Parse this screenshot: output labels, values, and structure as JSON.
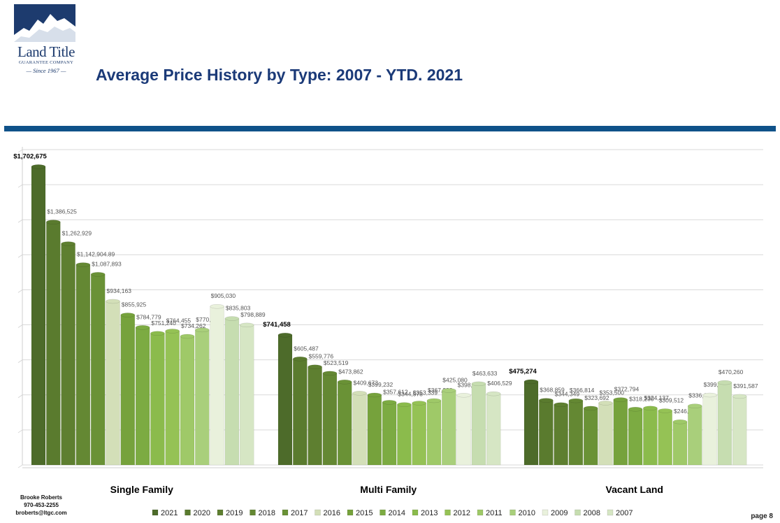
{
  "logo": {
    "name": "Land Title",
    "subtitle": "GUARANTEE COMPANY",
    "since": "— Since 1967 —"
  },
  "page_title": "Average Price History by Type: 2007 - YTD. 2021",
  "contact": {
    "name": "Brooke Roberts",
    "phone": "970-453-2255",
    "email": "broberts@ltgc.com"
  },
  "page_number": "page 8",
  "chart_data": {
    "type": "bar",
    "title": "",
    "xlabel": "",
    "ylabel": "",
    "ylim": [
      0,
      1800000
    ],
    "grid": true,
    "legend_position": "bottom",
    "categories": [
      "Single Family",
      "Multi Family",
      "Vacant Land"
    ],
    "series": [
      {
        "name": "2021",
        "color": "#4d6b2a",
        "values": [
          1702675,
          741458,
          475274
        ],
        "labels": [
          "$1,702,675",
          "$741,458",
          "$475,274"
        ]
      },
      {
        "name": "2020",
        "color": "#5a7b2e",
        "values": [
          1386525,
          605487,
          368859
        ],
        "labels": [
          "$1,386,525",
          "$605,487",
          "$368,859"
        ]
      },
      {
        "name": "2019",
        "color": "#5e7f30",
        "values": [
          1262929,
          559776,
          344349
        ],
        "labels": [
          "$1,262,929",
          "$559,776",
          "$344,349"
        ]
      },
      {
        "name": "2018",
        "color": "#648833",
        "values": [
          1142904.89,
          523519,
          366814
        ],
        "labels": [
          "$1,142,904.89",
          "$523,519",
          "$366,814"
        ]
      },
      {
        "name": "2017",
        "color": "#6a9236",
        "values": [
          1087893,
          473862,
          323692
        ],
        "labels": [
          "$1,087,893",
          "$473,862",
          "$323,692"
        ]
      },
      {
        "name": "2016",
        "color": "#d3dfb8",
        "values": [
          934163,
          409673,
          353500
        ],
        "labels": [
          "$934,163",
          "$409,673",
          "$353,500"
        ]
      },
      {
        "name": "2015",
        "color": "#76a23c",
        "values": [
          855925,
          399232,
          372794
        ],
        "labels": [
          "$855,925",
          "$399,232",
          "$372,794"
        ]
      },
      {
        "name": "2014",
        "color": "#7cab42",
        "values": [
          784779,
          357612,
          318230
        ],
        "labels": [
          "$784,779",
          "$357,612",
          "$318,230"
        ]
      },
      {
        "name": "2013",
        "color": "#8bbb4c",
        "values": [
          751240,
          344578,
          324137
        ],
        "labels": [
          "$751,240",
          "$344,578",
          "$324,137"
        ]
      },
      {
        "name": "2012",
        "color": "#95c255",
        "values": [
          764455,
          353339,
          309512
        ],
        "labels": [
          "$764,455",
          "$353,339",
          "$309,512"
        ]
      },
      {
        "name": "2011",
        "color": "#9fc968",
        "values": [
          734262,
          367280,
          246478
        ],
        "labels": [
          "$734,262",
          "$367,280",
          "$246,478"
        ]
      },
      {
        "name": "2010",
        "color": "#a9cf7b",
        "values": [
          770797,
          425080,
          336625
        ],
        "labels": [
          "$770,797",
          "$425,080",
          "$336,625"
        ]
      },
      {
        "name": "2009",
        "color": "#e9f1dc",
        "values": [
          905030,
          398051,
          399025
        ],
        "labels": [
          "$905,030",
          "$398,051",
          "$399,025"
        ]
      },
      {
        "name": "2008",
        "color": "#c6ddb0",
        "values": [
          835803,
          463633,
          470260
        ],
        "labels": [
          "$835,803",
          "$463,633",
          "$470,260"
        ]
      },
      {
        "name": "2007",
        "color": "#d6e6c4",
        "values": [
          798889,
          406529,
          391587
        ],
        "labels": [
          "$798,889",
          "$406,529",
          "$391,587"
        ]
      }
    ]
  }
}
